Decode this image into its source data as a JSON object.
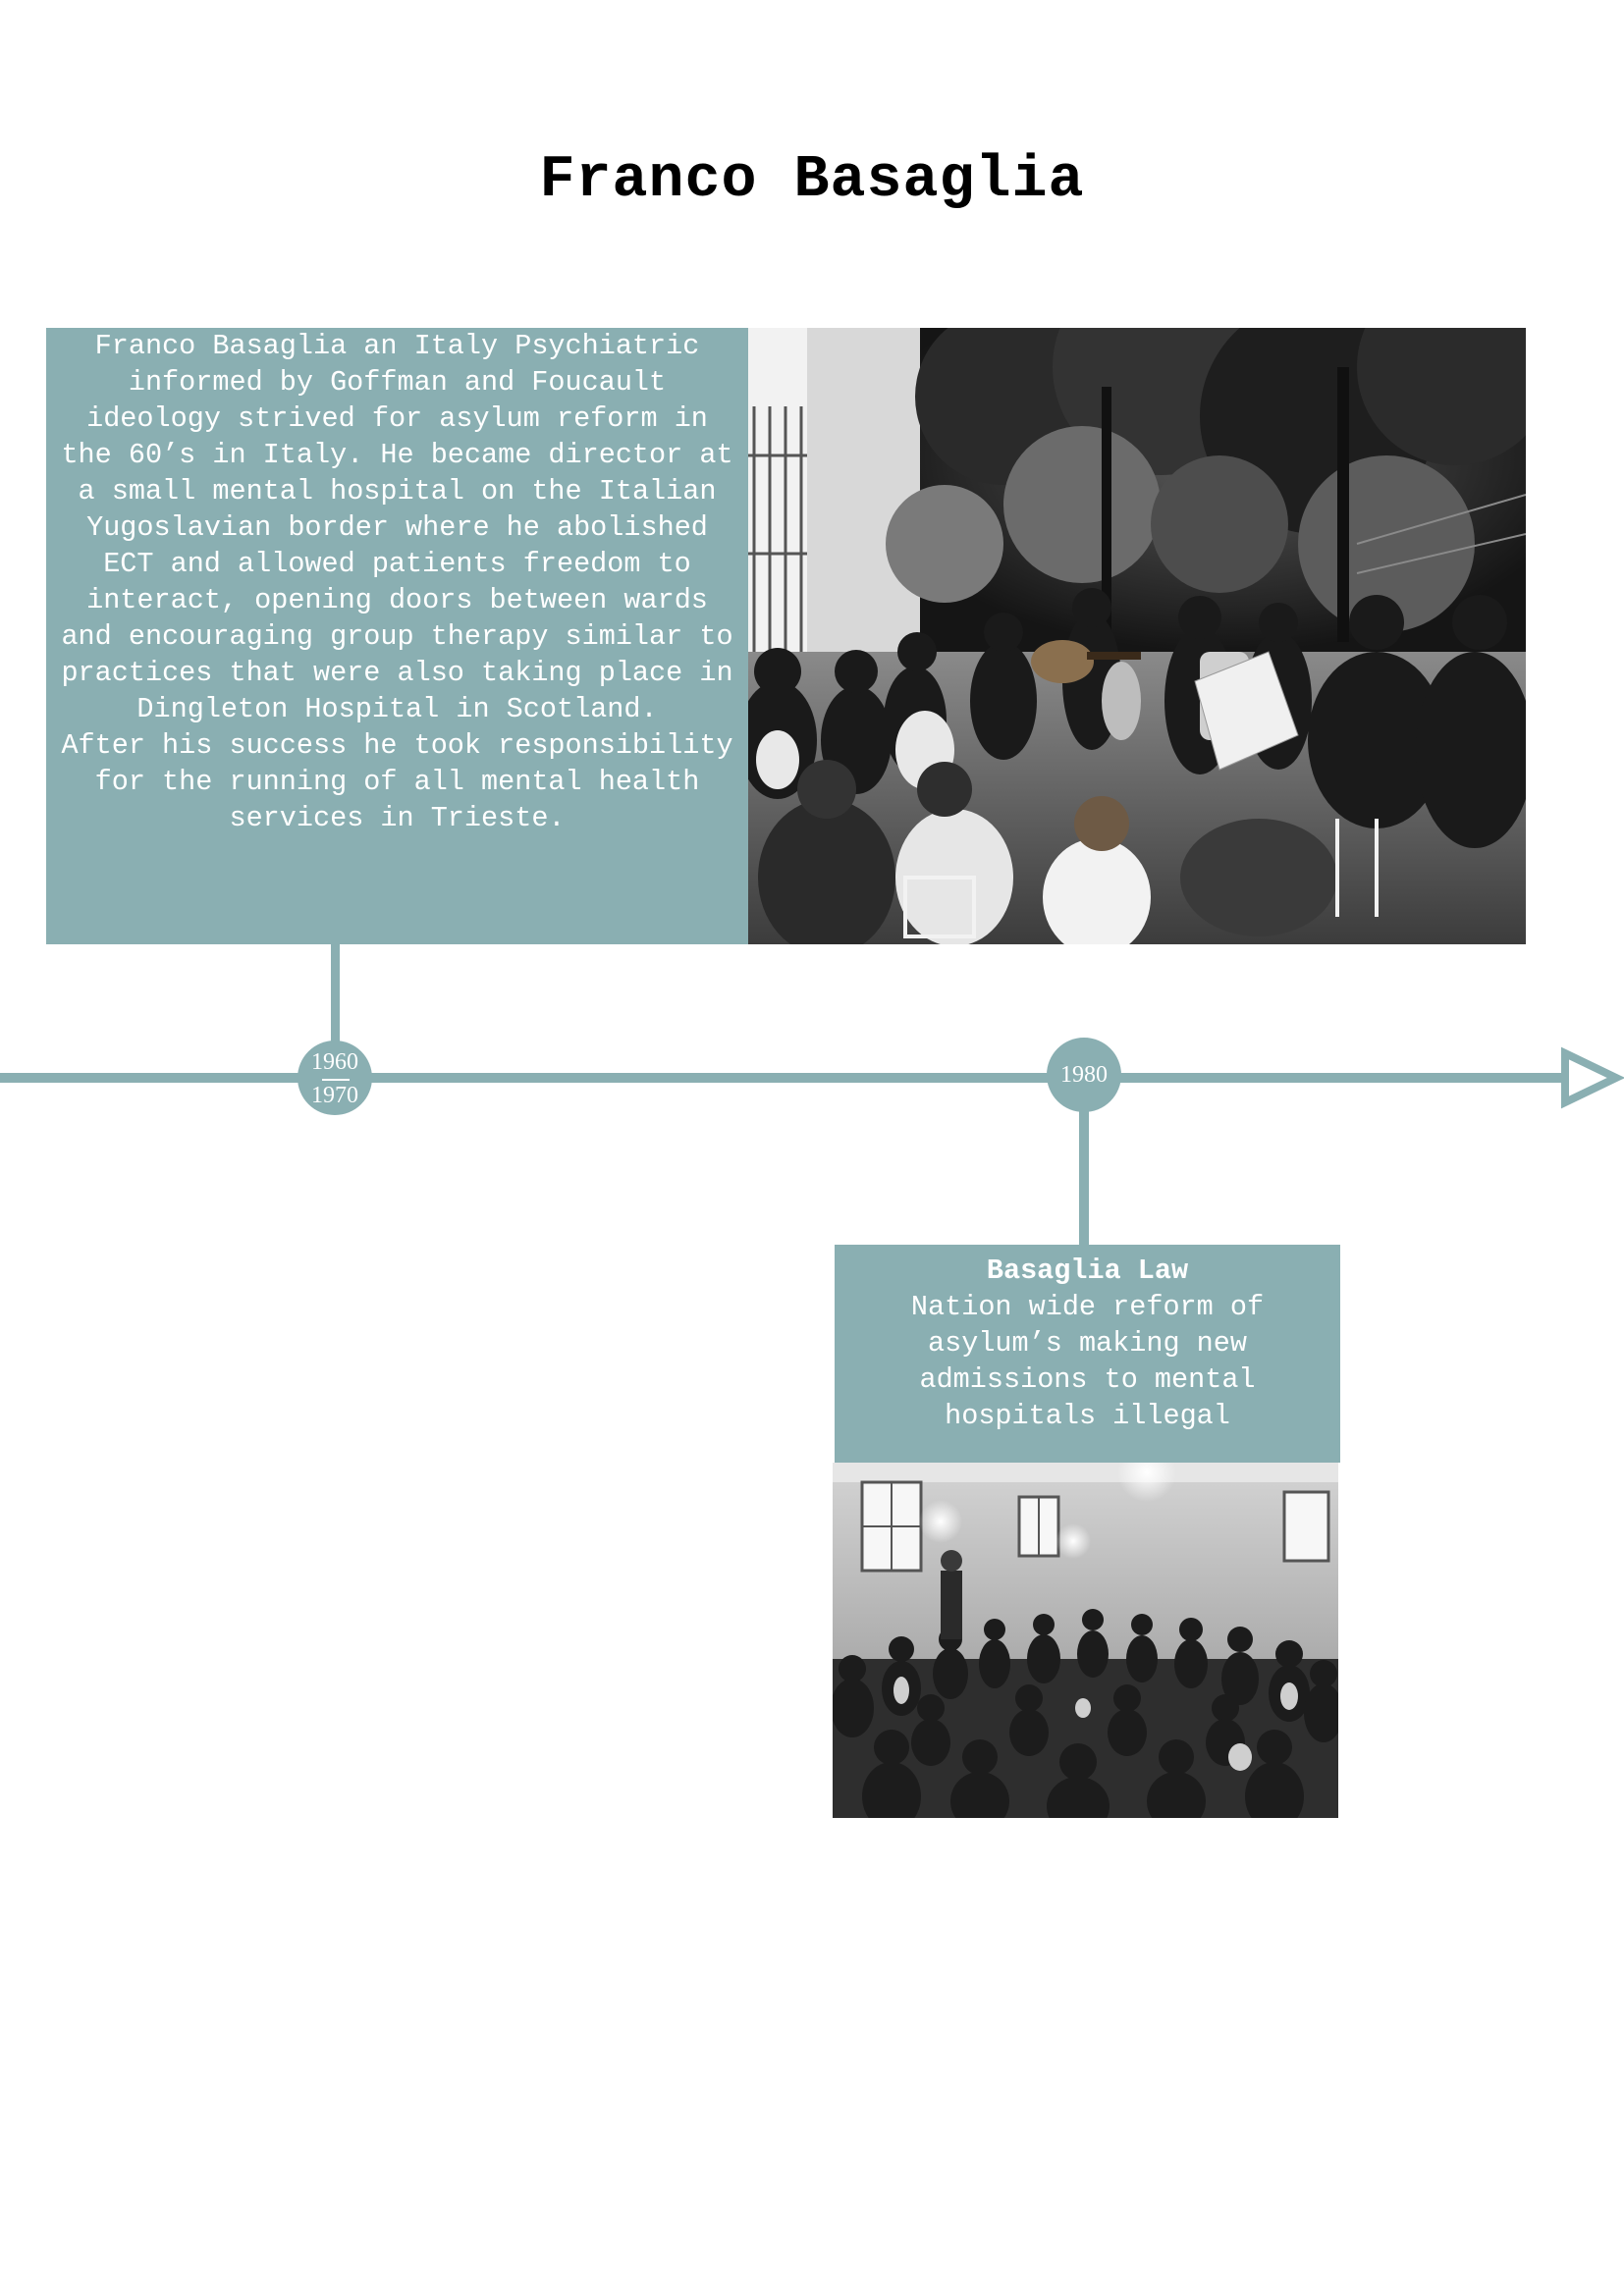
{
  "page": {
    "title": "Franco Basaglia"
  },
  "colors": {
    "accent": "#8aafb2",
    "box_text": "#ffffff",
    "title_text": "#000000"
  },
  "timeline": {
    "events": [
      {
        "year_start": "1960",
        "year_end": "1970",
        "paragraph_1": "Franco Basaglia an Italy Psychiatric informed by Goffman and Foucault ideology strived for asylum reform in the 60’s in Italy. He became director at a small mental hospital on the Italian Yugoslavian border where he abolished ECT and allowed patients freedom to interact, opening doors between wards and encouraging group therapy similar to practices that were also taking place in Dingleton Hospital in Scotland.",
        "paragraph_2": "After his success he took responsibility for the running of all mental health services in Trieste."
      },
      {
        "year": "1980",
        "heading": "Basaglia Law",
        "description": "Nation wide reform of asylum’s making new admissions to mental hospitals illegal"
      }
    ]
  }
}
